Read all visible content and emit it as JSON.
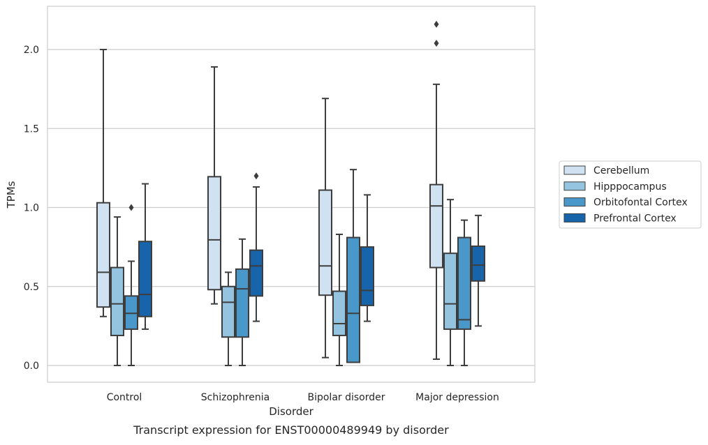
{
  "chart_data": {
    "type": "box",
    "caption": "Transcript expression for ENST00000489949 by disorder",
    "xlabel": "Disorder",
    "ylabel": "TPMs",
    "ylim": [
      -0.1,
      2.28
    ],
    "yticks": [
      "0.0",
      "0.5",
      "1.0",
      "1.5",
      "2.0"
    ],
    "grid": "horizontal",
    "legend_position": "right",
    "categories": [
      "Control",
      "Schizophrenia",
      "Bipolar disorder",
      "Major depression"
    ],
    "series": [
      {
        "name": "Cerebellum",
        "color": "#d0e1f2",
        "boxes": [
          {
            "q1": 0.37,
            "median": 0.59,
            "q3": 1.03,
            "whisker_low": 0.31,
            "whisker_high": 2.0,
            "outliers": []
          },
          {
            "q1": 0.48,
            "median": 0.795,
            "q3": 1.195,
            "whisker_low": 0.39,
            "whisker_high": 1.89,
            "outliers": []
          },
          {
            "q1": 0.445,
            "median": 0.63,
            "q3": 1.11,
            "whisker_low": 0.05,
            "whisker_high": 1.69,
            "outliers": []
          },
          {
            "q1": 0.62,
            "median": 1.01,
            "q3": 1.145,
            "whisker_low": 0.04,
            "whisker_high": 1.78,
            "outliers": [
              2.04,
              2.16
            ]
          }
        ]
      },
      {
        "name": "Hipppocampus",
        "color": "#94c4df",
        "boxes": [
          {
            "q1": 0.19,
            "median": 0.39,
            "q3": 0.62,
            "whisker_low": 0.0,
            "whisker_high": 0.94,
            "outliers": []
          },
          {
            "q1": 0.18,
            "median": 0.4,
            "q3": 0.5,
            "whisker_low": 0.0,
            "whisker_high": 0.59,
            "outliers": []
          },
          {
            "q1": 0.19,
            "median": 0.265,
            "q3": 0.47,
            "whisker_low": 0.0,
            "whisker_high": 0.83,
            "outliers": []
          },
          {
            "q1": 0.23,
            "median": 0.39,
            "q3": 0.71,
            "whisker_low": 0.0,
            "whisker_high": 1.05,
            "outliers": []
          }
        ]
      },
      {
        "name": "Orbitofontal Cortex",
        "color": "#4a98c9",
        "boxes": [
          {
            "q1": 0.23,
            "median": 0.33,
            "q3": 0.44,
            "whisker_low": 0.0,
            "whisker_high": 0.66,
            "outliers": [
              1.0
            ]
          },
          {
            "q1": 0.18,
            "median": 0.485,
            "q3": 0.61,
            "whisker_low": 0.0,
            "whisker_high": 0.8,
            "outliers": []
          },
          {
            "q1": 0.02,
            "median": 0.33,
            "q3": 0.81,
            "whisker_low": 0.02,
            "whisker_high": 1.24,
            "outliers": []
          },
          {
            "q1": 0.23,
            "median": 0.29,
            "q3": 0.81,
            "whisker_low": 0.0,
            "whisker_high": 0.92,
            "outliers": []
          }
        ]
      },
      {
        "name": "Prefrontal Cortex",
        "color": "#1764ab",
        "boxes": [
          {
            "q1": 0.31,
            "median": 0.45,
            "q3": 0.785,
            "whisker_low": 0.23,
            "whisker_high": 1.15,
            "outliers": []
          },
          {
            "q1": 0.44,
            "median": 0.63,
            "q3": 0.73,
            "whisker_low": 0.28,
            "whisker_high": 1.13,
            "outliers": [
              1.2
            ]
          },
          {
            "q1": 0.38,
            "median": 0.475,
            "q3": 0.75,
            "whisker_low": 0.28,
            "whisker_high": 1.08,
            "outliers": []
          },
          {
            "q1": 0.535,
            "median": 0.635,
            "q3": 0.755,
            "whisker_low": 0.25,
            "whisker_high": 0.95,
            "outliers": []
          }
        ]
      }
    ]
  }
}
